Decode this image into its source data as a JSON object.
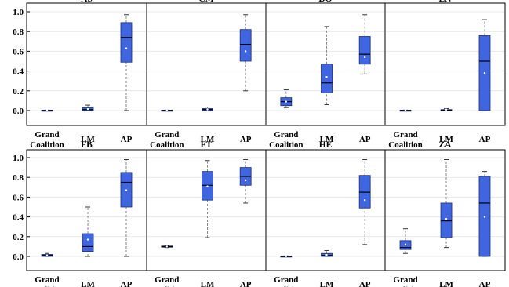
{
  "chart_data": [
    {
      "type": "box",
      "title": "AS",
      "categories": [
        "Grand Coalition",
        "LM",
        "AP"
      ],
      "ylim": [
        -0.1,
        1.05
      ],
      "yticks": [
        0.0,
        0.2,
        0.4,
        0.6,
        0.8,
        1.0
      ],
      "boxes": [
        {
          "min": 0.0,
          "q1": 0.0,
          "median": 0.0,
          "q3": 0.005,
          "max": 0.005,
          "mean": 0.002
        },
        {
          "min": 0.0,
          "q1": 0.0,
          "median": 0.01,
          "q3": 0.03,
          "max": 0.055,
          "mean": 0.015
        },
        {
          "min": 0.0,
          "q1": 0.49,
          "median": 0.74,
          "q3": 0.89,
          "max": 0.97,
          "mean": 0.63
        }
      ]
    },
    {
      "type": "box",
      "title": "CM",
      "categories": [
        "Grand Coalition",
        "LM",
        "AP"
      ],
      "ylim": [
        -0.1,
        1.05
      ],
      "boxes": [
        {
          "min": 0.0,
          "q1": 0.0,
          "median": 0.0,
          "q3": 0.005,
          "max": 0.005,
          "mean": 0.002
        },
        {
          "min": 0.0,
          "q1": 0.0,
          "median": 0.01,
          "q3": 0.02,
          "max": 0.035,
          "mean": 0.012
        },
        {
          "min": 0.2,
          "q1": 0.5,
          "median": 0.67,
          "q3": 0.82,
          "max": 0.97,
          "mean": 0.6
        }
      ]
    },
    {
      "type": "box",
      "title": "DO",
      "categories": [
        "Grand Coalition",
        "LM",
        "AP"
      ],
      "ylim": [
        -0.1,
        1.05
      ],
      "boxes": [
        {
          "min": 0.03,
          "q1": 0.05,
          "median": 0.09,
          "q3": 0.13,
          "max": 0.21,
          "mean": 0.09
        },
        {
          "min": 0.06,
          "q1": 0.18,
          "median": 0.28,
          "q3": 0.47,
          "max": 0.85,
          "mean": 0.34
        },
        {
          "min": 0.37,
          "q1": 0.47,
          "median": 0.57,
          "q3": 0.75,
          "max": 0.97,
          "mean": 0.54
        }
      ]
    },
    {
      "type": "box",
      "title": "EN",
      "categories": [
        "Grand Coalition",
        "LM",
        "AP"
      ],
      "ylim": [
        -0.1,
        1.05
      ],
      "boxes": [
        {
          "min": 0.0,
          "q1": 0.0,
          "median": 0.0,
          "q3": 0.005,
          "max": 0.005,
          "mean": 0.002
        },
        {
          "min": 0.0,
          "q1": 0.0,
          "median": 0.005,
          "q3": 0.01,
          "max": 0.02,
          "mean": 0.01
        },
        {
          "min": 0.0,
          "q1": 0.0,
          "median": 0.5,
          "q3": 0.76,
          "max": 0.92,
          "mean": 0.38
        }
      ]
    },
    {
      "type": "box",
      "title": "FB",
      "categories": [
        "Grand Coalition",
        "LM",
        "AP"
      ],
      "ylim": [
        -0.1,
        1.05
      ],
      "yticks": [
        0.0,
        0.2,
        0.4,
        0.6,
        0.8,
        1.0
      ],
      "boxes": [
        {
          "min": 0.0,
          "q1": 0.0,
          "median": 0.01,
          "q3": 0.02,
          "max": 0.03,
          "mean": 0.01
        },
        {
          "min": 0.0,
          "q1": 0.05,
          "median": 0.1,
          "q3": 0.23,
          "max": 0.5,
          "mean": 0.17
        },
        {
          "min": 0.0,
          "q1": 0.5,
          "median": 0.75,
          "q3": 0.85,
          "max": 0.98,
          "mean": 0.67
        }
      ]
    },
    {
      "type": "box",
      "title": "FT",
      "categories": [
        "Grand Coalition",
        "LM",
        "AP"
      ],
      "ylim": [
        -0.1,
        1.05
      ],
      "boxes": [
        {
          "min": 0.09,
          "q1": 0.095,
          "median": 0.1,
          "q3": 0.105,
          "max": 0.11,
          "mean": 0.1
        },
        {
          "min": 0.19,
          "q1": 0.57,
          "median": 0.72,
          "q3": 0.86,
          "max": 0.97,
          "mean": 0.71
        },
        {
          "min": 0.54,
          "q1": 0.72,
          "median": 0.81,
          "q3": 0.9,
          "max": 0.98,
          "mean": 0.77
        }
      ]
    },
    {
      "type": "box",
      "title": "HE",
      "categories": [
        "Grand Coalition",
        "LM",
        "AP"
      ],
      "ylim": [
        -0.1,
        1.05
      ],
      "boxes": [
        {
          "min": 0.0,
          "q1": 0.0,
          "median": 0.0,
          "q3": 0.005,
          "max": 0.005,
          "mean": 0.002
        },
        {
          "min": 0.0,
          "q1": 0.0,
          "median": 0.01,
          "q3": 0.03,
          "max": 0.06,
          "mean": 0.015
        },
        {
          "min": 0.12,
          "q1": 0.49,
          "median": 0.65,
          "q3": 0.82,
          "max": 0.98,
          "mean": 0.57
        }
      ]
    },
    {
      "type": "box",
      "title": "ZA",
      "categories": [
        "Grand Coalition",
        "LM",
        "AP"
      ],
      "ylim": [
        -0.1,
        1.05
      ],
      "boxes": [
        {
          "min": 0.03,
          "q1": 0.07,
          "median": 0.09,
          "q3": 0.16,
          "max": 0.28,
          "mean": 0.12
        },
        {
          "min": 0.09,
          "q1": 0.19,
          "median": 0.36,
          "q3": 0.54,
          "max": 0.98,
          "mean": 0.38
        },
        {
          "min": 0.0,
          "q1": 0.0,
          "median": 0.54,
          "q3": 0.81,
          "max": 0.86,
          "mean": 0.4
        }
      ]
    }
  ],
  "colors": {
    "box_fill": "#3F66E0",
    "box_stroke": "#1c2f70",
    "whisker": "#888888",
    "median": "#000000",
    "mean_dot": "#ffffff",
    "frame": "#000000",
    "grid": "#e8e8e8"
  }
}
